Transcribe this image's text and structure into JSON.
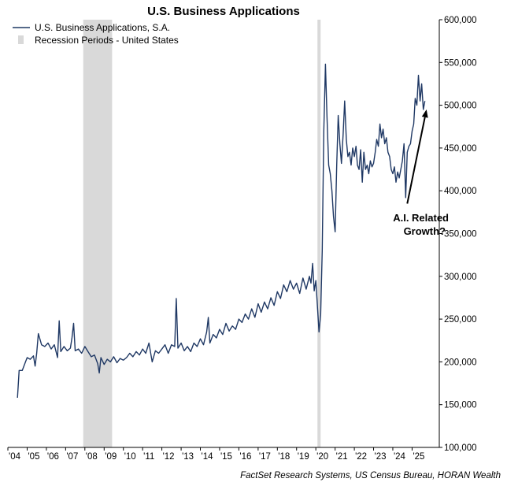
{
  "chart_data": {
    "type": "line",
    "title": "U.S. Business Applications",
    "source": "FactSet Research Systems, US Census Bureau, HORAN Wealth",
    "annotation": {
      "line1": "A.I. Related",
      "line2": "Growth?",
      "arrow_from": [
        "2024-10-01",
        385000
      ],
      "arrow_to": [
        "2025-10-01",
        495000
      ]
    },
    "legend": {
      "placement": "top-left",
      "series_label": "U.S. Business Applications, S.A.",
      "recession_label": "Recession Periods - United States"
    },
    "colors": {
      "series": "#1f3864",
      "recession": "#d9d9d9",
      "axis": "#000000"
    },
    "x_axis": {
      "range": [
        "2004-01-01",
        "2026-06-01"
      ],
      "ticks": [
        {
          "date": "2004-01-01",
          "label": "'04"
        },
        {
          "date": "2005-01-01",
          "label": "'05"
        },
        {
          "date": "2006-01-01",
          "label": "'06"
        },
        {
          "date": "2007-01-01",
          "label": "'07"
        },
        {
          "date": "2008-01-01",
          "label": "'08"
        },
        {
          "date": "2009-01-01",
          "label": "'09"
        },
        {
          "date": "2010-01-01",
          "label": "'10"
        },
        {
          "date": "2011-01-01",
          "label": "'11"
        },
        {
          "date": "2012-01-01",
          "label": "'12"
        },
        {
          "date": "2013-01-01",
          "label": "'13"
        },
        {
          "date": "2014-01-01",
          "label": "'14"
        },
        {
          "date": "2015-01-01",
          "label": "'15"
        },
        {
          "date": "2016-01-01",
          "label": "'16"
        },
        {
          "date": "2017-01-01",
          "label": "'17"
        },
        {
          "date": "2018-01-01",
          "label": "'18"
        },
        {
          "date": "2019-01-01",
          "label": "'19"
        },
        {
          "date": "2020-01-01",
          "label": "'20"
        },
        {
          "date": "2021-01-01",
          "label": "'21"
        },
        {
          "date": "2022-01-01",
          "label": "'22"
        },
        {
          "date": "2023-01-01",
          "label": "'23"
        },
        {
          "date": "2024-01-01",
          "label": "'24"
        },
        {
          "date": "2025-01-01",
          "label": "'25"
        }
      ]
    },
    "y_axis": {
      "range": [
        100000,
        600000
      ],
      "side": "right",
      "ticks": [
        {
          "value": 100000,
          "label": "100,000"
        },
        {
          "value": 150000,
          "label": "150,000"
        },
        {
          "value": 200000,
          "label": "200,000"
        },
        {
          "value": 250000,
          "label": "250,000"
        },
        {
          "value": 300000,
          "label": "300,000"
        },
        {
          "value": 350000,
          "label": "350,000"
        },
        {
          "value": 400000,
          "label": "400,000"
        },
        {
          "value": 450000,
          "label": "450,000"
        },
        {
          "value": 500000,
          "label": "500,000"
        },
        {
          "value": 550000,
          "label": "550,000"
        },
        {
          "value": 600000,
          "label": "600,000"
        }
      ]
    },
    "recessions": [
      {
        "start": "2007-12-01",
        "end": "2009-06-01"
      },
      {
        "start": "2020-02-01",
        "end": "2020-04-01"
      }
    ],
    "series": [
      {
        "points": [
          [
            "2004-07-01",
            158000
          ],
          [
            "2004-08-01",
            190000
          ],
          [
            "2004-10-01",
            190000
          ],
          [
            "2004-12-01",
            200000
          ],
          [
            "2005-01-01",
            205000
          ],
          [
            "2005-03-01",
            203000
          ],
          [
            "2005-05-01",
            207000
          ],
          [
            "2005-06-01",
            195000
          ],
          [
            "2005-07-01",
            210000
          ],
          [
            "2005-08-01",
            233000
          ],
          [
            "2005-10-01",
            220000
          ],
          [
            "2005-12-01",
            218000
          ],
          [
            "2006-02-01",
            222000
          ],
          [
            "2006-04-01",
            215000
          ],
          [
            "2006-06-01",
            220000
          ],
          [
            "2006-08-01",
            205000
          ],
          [
            "2006-09-01",
            248000
          ],
          [
            "2006-10-01",
            212000
          ],
          [
            "2006-12-01",
            218000
          ],
          [
            "2007-02-01",
            213000
          ],
          [
            "2007-04-01",
            216000
          ],
          [
            "2007-05-01",
            228000
          ],
          [
            "2007-06-01",
            245000
          ],
          [
            "2007-07-01",
            213000
          ],
          [
            "2007-09-01",
            215000
          ],
          [
            "2007-11-01",
            210000
          ],
          [
            "2008-01-01",
            218000
          ],
          [
            "2008-03-01",
            212000
          ],
          [
            "2008-05-01",
            206000
          ],
          [
            "2008-07-01",
            208000
          ],
          [
            "2008-09-01",
            198000
          ],
          [
            "2008-10-01",
            187000
          ],
          [
            "2008-11-01",
            205000
          ],
          [
            "2009-01-01",
            197000
          ],
          [
            "2009-03-01",
            203000
          ],
          [
            "2009-05-01",
            200000
          ],
          [
            "2009-07-01",
            206000
          ],
          [
            "2009-09-01",
            199000
          ],
          [
            "2009-11-01",
            204000
          ],
          [
            "2010-01-01",
            202000
          ],
          [
            "2010-03-01",
            205000
          ],
          [
            "2010-05-01",
            210000
          ],
          [
            "2010-07-01",
            206000
          ],
          [
            "2010-09-01",
            212000
          ],
          [
            "2010-11-01",
            208000
          ],
          [
            "2011-01-01",
            215000
          ],
          [
            "2011-03-01",
            210000
          ],
          [
            "2011-05-01",
            222000
          ],
          [
            "2011-07-01",
            200000
          ],
          [
            "2011-09-01",
            213000
          ],
          [
            "2011-11-01",
            210000
          ],
          [
            "2012-01-01",
            215000
          ],
          [
            "2012-03-01",
            220000
          ],
          [
            "2012-05-01",
            210000
          ],
          [
            "2012-07-01",
            220000
          ],
          [
            "2012-09-01",
            218000
          ],
          [
            "2012-10-01",
            274000
          ],
          [
            "2012-11-01",
            216000
          ],
          [
            "2013-01-01",
            222000
          ],
          [
            "2013-03-01",
            213000
          ],
          [
            "2013-05-01",
            218000
          ],
          [
            "2013-07-01",
            212000
          ],
          [
            "2013-09-01",
            222000
          ],
          [
            "2013-11-01",
            218000
          ],
          [
            "2014-01-01",
            227000
          ],
          [
            "2014-03-01",
            220000
          ],
          [
            "2014-05-01",
            235000
          ],
          [
            "2014-06-01",
            252000
          ],
          [
            "2014-07-01",
            222000
          ],
          [
            "2014-09-01",
            232000
          ],
          [
            "2014-11-01",
            228000
          ],
          [
            "2015-01-01",
            238000
          ],
          [
            "2015-03-01",
            232000
          ],
          [
            "2015-05-01",
            245000
          ],
          [
            "2015-07-01",
            236000
          ],
          [
            "2015-09-01",
            242000
          ],
          [
            "2015-11-01",
            238000
          ],
          [
            "2016-01-01",
            250000
          ],
          [
            "2016-03-01",
            246000
          ],
          [
            "2016-05-01",
            256000
          ],
          [
            "2016-07-01",
            250000
          ],
          [
            "2016-09-01",
            262000
          ],
          [
            "2016-11-01",
            252000
          ],
          [
            "2017-01-01",
            268000
          ],
          [
            "2017-03-01",
            258000
          ],
          [
            "2017-05-01",
            270000
          ],
          [
            "2017-07-01",
            262000
          ],
          [
            "2017-09-01",
            275000
          ],
          [
            "2017-11-01",
            266000
          ],
          [
            "2018-01-01",
            282000
          ],
          [
            "2018-03-01",
            274000
          ],
          [
            "2018-05-01",
            290000
          ],
          [
            "2018-07-01",
            282000
          ],
          [
            "2018-09-01",
            295000
          ],
          [
            "2018-11-01",
            285000
          ],
          [
            "2019-01-01",
            292000
          ],
          [
            "2019-03-01",
            280000
          ],
          [
            "2019-05-01",
            298000
          ],
          [
            "2019-07-01",
            285000
          ],
          [
            "2019-09-01",
            300000
          ],
          [
            "2019-10-01",
            292000
          ],
          [
            "2019-11-01",
            315000
          ],
          [
            "2019-12-01",
            283000
          ],
          [
            "2020-01-01",
            295000
          ],
          [
            "2020-02-01",
            265000
          ],
          [
            "2020-03-01",
            235000
          ],
          [
            "2020-04-01",
            255000
          ],
          [
            "2020-05-01",
            330000
          ],
          [
            "2020-06-01",
            470000
          ],
          [
            "2020-07-01",
            548000
          ],
          [
            "2020-08-01",
            485000
          ],
          [
            "2020-09-01",
            430000
          ],
          [
            "2020-10-01",
            420000
          ],
          [
            "2020-11-01",
            400000
          ],
          [
            "2020-12-01",
            370000
          ],
          [
            "2021-01-01",
            352000
          ],
          [
            "2021-02-01",
            430000
          ],
          [
            "2021-03-01",
            488000
          ],
          [
            "2021-04-01",
            455000
          ],
          [
            "2021-05-01",
            432000
          ],
          [
            "2021-06-01",
            465000
          ],
          [
            "2021-07-01",
            505000
          ],
          [
            "2021-08-01",
            460000
          ],
          [
            "2021-09-01",
            440000
          ],
          [
            "2021-10-01",
            445000
          ],
          [
            "2021-11-01",
            430000
          ],
          [
            "2021-12-01",
            450000
          ],
          [
            "2022-01-01",
            440000
          ],
          [
            "2022-02-01",
            452000
          ],
          [
            "2022-03-01",
            430000
          ],
          [
            "2022-04-01",
            425000
          ],
          [
            "2022-05-01",
            448000
          ],
          [
            "2022-06-01",
            410000
          ],
          [
            "2022-07-01",
            445000
          ],
          [
            "2022-08-01",
            425000
          ],
          [
            "2022-09-01",
            430000
          ],
          [
            "2022-10-01",
            420000
          ],
          [
            "2022-11-01",
            435000
          ],
          [
            "2022-12-01",
            428000
          ],
          [
            "2023-01-01",
            432000
          ],
          [
            "2023-02-01",
            445000
          ],
          [
            "2023-03-01",
            460000
          ],
          [
            "2023-04-01",
            452000
          ],
          [
            "2023-05-01",
            478000
          ],
          [
            "2023-06-01",
            462000
          ],
          [
            "2023-07-01",
            472000
          ],
          [
            "2023-08-01",
            455000
          ],
          [
            "2023-09-01",
            462000
          ],
          [
            "2023-10-01",
            445000
          ],
          [
            "2023-11-01",
            440000
          ],
          [
            "2023-12-01",
            425000
          ],
          [
            "2024-01-01",
            420000
          ],
          [
            "2024-02-01",
            428000
          ],
          [
            "2024-03-01",
            410000
          ],
          [
            "2024-04-01",
            422000
          ],
          [
            "2024-05-01",
            415000
          ],
          [
            "2024-06-01",
            425000
          ],
          [
            "2024-07-01",
            435000
          ],
          [
            "2024-08-01",
            455000
          ],
          [
            "2024-09-01",
            392000
          ],
          [
            "2024-10-01",
            445000
          ],
          [
            "2024-11-01",
            452000
          ],
          [
            "2024-12-01",
            455000
          ],
          [
            "2025-01-01",
            470000
          ],
          [
            "2025-02-01",
            478000
          ],
          [
            "2025-03-01",
            508000
          ],
          [
            "2025-04-01",
            500000
          ],
          [
            "2025-05-01",
            535000
          ],
          [
            "2025-06-01",
            505000
          ],
          [
            "2025-07-01",
            525000
          ],
          [
            "2025-08-01",
            495000
          ],
          [
            "2025-09-01",
            505000
          ]
        ]
      }
    ]
  }
}
